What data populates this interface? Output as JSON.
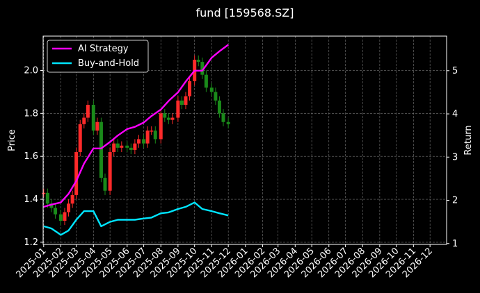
{
  "chart_data": {
    "type": "line",
    "title": "fund [159568.SZ]",
    "ylabel": "Price",
    "y2label": "Return",
    "ylim": [
      1.19,
      2.16
    ],
    "y2lim": [
      0.98,
      5.8
    ],
    "yticks": [
      "1.2",
      "1.4",
      "1.6",
      "1.8",
      "2.0"
    ],
    "y2ticks": [
      "1",
      "2",
      "3",
      "4",
      "5"
    ],
    "grid": true,
    "legend": "top-left",
    "xticks": [
      "2025-01",
      "2025-02",
      "2025-03",
      "2025-04",
      "2025-05",
      "2025-06",
      "2025-07",
      "2025-08",
      "2025-09",
      "2025-10",
      "2025-11",
      "2025-12",
      "2026-01",
      "2026-02",
      "2026-03",
      "2026-04",
      "2026-05",
      "2026-06",
      "2026-07",
      "2026-08",
      "2026-09",
      "2026-10",
      "2026-11",
      "2026-12"
    ],
    "x_range": [
      "2024-12-31",
      "2026-12-31"
    ],
    "colors": {
      "background": "#000000",
      "ai_strategy": "#ff00ff",
      "buy_and_hold": "#00e5ff",
      "up": "#ff2a2a",
      "down": "#1a8a1a"
    },
    "series": [
      {
        "name": "AI Strategy",
        "axis": "right",
        "dates": [
          "2025-01-01",
          "2025-01-15",
          "2025-02-01",
          "2025-02-15",
          "2025-03-01",
          "2025-03-15",
          "2025-04-01",
          "2025-04-15",
          "2025-05-01",
          "2025-05-15",
          "2025-06-01",
          "2025-06-15",
          "2025-07-01",
          "2025-07-15",
          "2025-08-01",
          "2025-08-15",
          "2025-09-01",
          "2025-09-15",
          "2025-10-01",
          "2025-10-15",
          "2025-11-01",
          "2025-11-15",
          "2025-12-01"
        ],
        "values": [
          1.85,
          1.9,
          1.95,
          2.15,
          2.45,
          2.85,
          3.2,
          3.2,
          3.35,
          3.5,
          3.65,
          3.7,
          3.8,
          3.95,
          4.1,
          4.3,
          4.5,
          4.75,
          5.0,
          5.0,
          5.3,
          5.45,
          5.6
        ]
      },
      {
        "name": "Buy-and-Hold",
        "axis": "right",
        "dates": [
          "2025-01-01",
          "2025-01-15",
          "2025-02-01",
          "2025-02-15",
          "2025-03-01",
          "2025-03-15",
          "2025-04-01",
          "2025-04-15",
          "2025-05-01",
          "2025-05-15",
          "2025-06-01",
          "2025-06-15",
          "2025-07-01",
          "2025-07-15",
          "2025-08-01",
          "2025-08-15",
          "2025-09-01",
          "2025-09-15",
          "2025-10-01",
          "2025-10-15",
          "2025-11-01",
          "2025-11-15",
          "2025-12-01"
        ],
        "values": [
          1.4,
          1.35,
          1.2,
          1.3,
          1.55,
          1.75,
          1.75,
          1.4,
          1.5,
          1.55,
          1.55,
          1.55,
          1.58,
          1.6,
          1.7,
          1.72,
          1.8,
          1.85,
          1.95,
          1.8,
          1.75,
          1.7,
          1.65
        ]
      },
      {
        "name": "Price",
        "type": "candlestick",
        "axis": "left",
        "dates": [
          "2025-01-01",
          "2025-01-08",
          "2025-01-15",
          "2025-01-22",
          "2025-02-01",
          "2025-02-08",
          "2025-02-15",
          "2025-02-22",
          "2025-03-01",
          "2025-03-08",
          "2025-03-15",
          "2025-03-22",
          "2025-04-01",
          "2025-04-08",
          "2025-04-15",
          "2025-04-22",
          "2025-05-01",
          "2025-05-08",
          "2025-05-15",
          "2025-05-22",
          "2025-06-01",
          "2025-06-08",
          "2025-06-15",
          "2025-06-22",
          "2025-07-01",
          "2025-07-08",
          "2025-07-15",
          "2025-07-22",
          "2025-08-01",
          "2025-08-08",
          "2025-08-15",
          "2025-08-22",
          "2025-09-01",
          "2025-09-08",
          "2025-09-15",
          "2025-09-22",
          "2025-10-01",
          "2025-10-08",
          "2025-10-15",
          "2025-10-22",
          "2025-11-01",
          "2025-11-08",
          "2025-11-15",
          "2025-11-22",
          "2025-12-01"
        ],
        "close": [
          1.43,
          1.38,
          1.36,
          1.33,
          1.3,
          1.34,
          1.38,
          1.42,
          1.62,
          1.75,
          1.78,
          1.84,
          1.72,
          1.76,
          1.5,
          1.44,
          1.62,
          1.66,
          1.64,
          1.65,
          1.64,
          1.63,
          1.66,
          1.68,
          1.66,
          1.72,
          1.72,
          1.68,
          1.8,
          1.78,
          1.77,
          1.78,
          1.86,
          1.84,
          1.88,
          1.95,
          2.05,
          2.04,
          1.98,
          1.92,
          1.9,
          1.86,
          1.8,
          1.76,
          1.75
        ]
      }
    ]
  }
}
